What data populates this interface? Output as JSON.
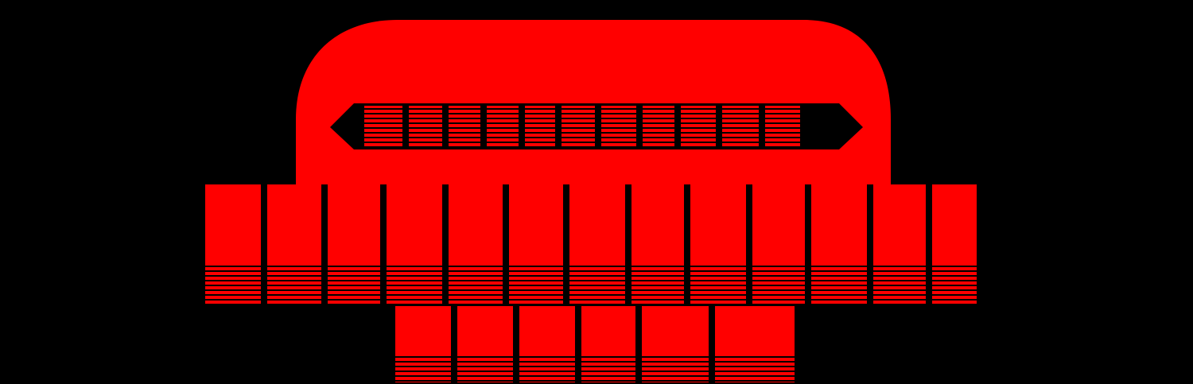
{
  "colors": {
    "background": "#000000",
    "accent": "#ff0000"
  },
  "logo": {
    "icon": "red-striped-block-lettering-logo",
    "lettering_legible": false
  }
}
